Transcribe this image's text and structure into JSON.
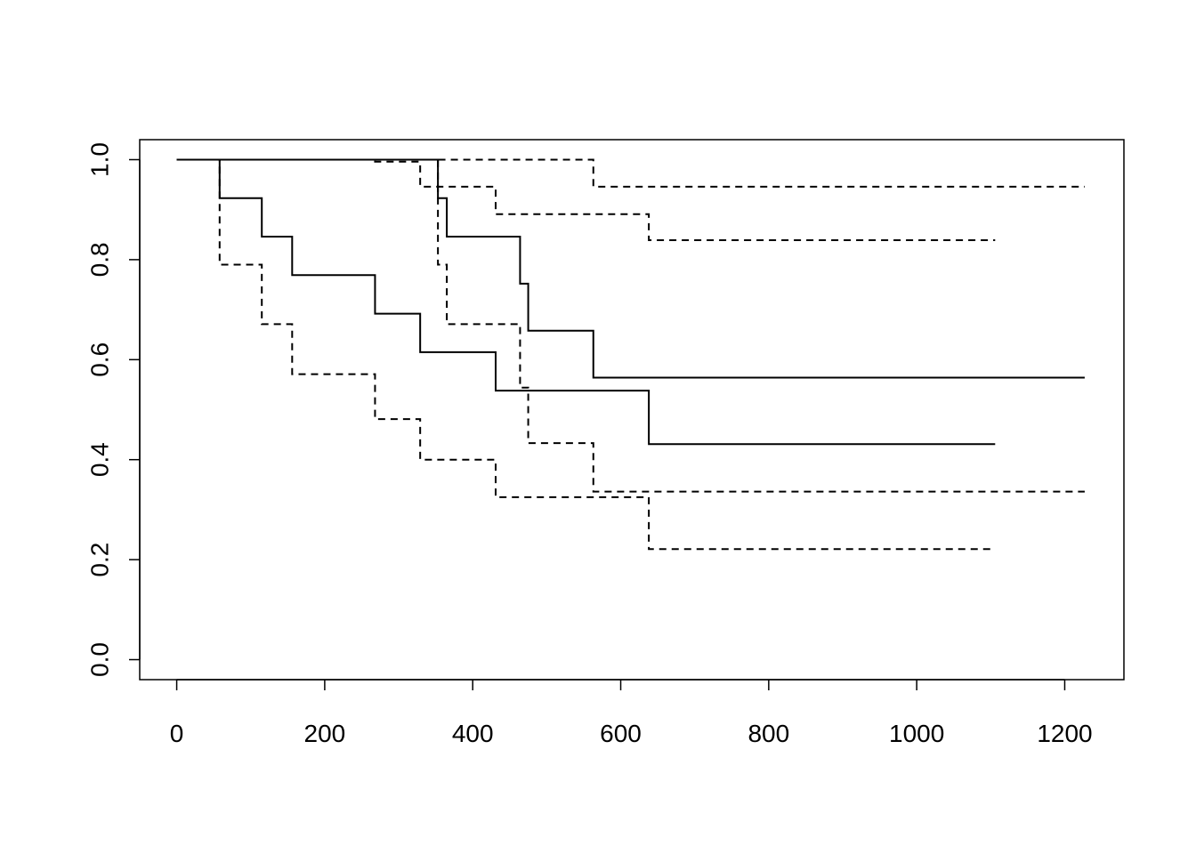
{
  "chart_data": {
    "type": "line",
    "title": "",
    "xlabel": "",
    "ylabel": "",
    "xlim": [
      -50,
      1280
    ],
    "ylim": [
      -0.04,
      1.04
    ],
    "x_ticks": [
      0,
      200,
      400,
      600,
      800,
      1000,
      1200
    ],
    "y_ticks": [
      0.0,
      0.2,
      0.4,
      0.6,
      0.8,
      1.0
    ],
    "x_tick_labels": [
      "0",
      "200",
      "400",
      "600",
      "800",
      "1000",
      "1200"
    ],
    "y_tick_labels": [
      "0.0",
      "0.2",
      "0.4",
      "0.6",
      "0.8",
      "1.0"
    ],
    "grid": false,
    "legend": "none",
    "step": true,
    "series": [
      {
        "style": "solid",
        "x": [
          0,
          58,
          115,
          156,
          268,
          329,
          431,
          638,
          1106
        ],
        "y": [
          1.0,
          0.923,
          0.846,
          0.769,
          0.692,
          0.615,
          0.538,
          0.431,
          0.431
        ]
      },
      {
        "style": "dashed",
        "x": [
          0,
          58,
          115,
          156,
          268,
          329,
          431,
          638,
          1106
        ],
        "y": [
          1.0,
          0.79,
          0.671,
          0.571,
          0.481,
          0.4,
          0.325,
          0.221,
          0.221
        ]
      },
      {
        "style": "dashed",
        "x": [
          0,
          268,
          329,
          431,
          638,
          1106
        ],
        "y": [
          1.0,
          0.996,
          0.946,
          0.891,
          0.839,
          0.839
        ]
      },
      {
        "style": "solid",
        "x": [
          0,
          353,
          365,
          464,
          475,
          563,
          1227
        ],
        "y": [
          1.0,
          0.923,
          0.846,
          0.752,
          0.658,
          0.564,
          0.564
        ]
      },
      {
        "style": "dashed",
        "x": [
          0,
          353,
          365,
          464,
          475,
          563,
          1227
        ],
        "y": [
          1.0,
          0.79,
          0.671,
          0.544,
          0.433,
          0.336,
          0.336
        ]
      },
      {
        "style": "dashed",
        "x": [
          0,
          353,
          563,
          1227
        ],
        "y": [
          1.0,
          1.0,
          0.946,
          0.946
        ]
      }
    ]
  }
}
